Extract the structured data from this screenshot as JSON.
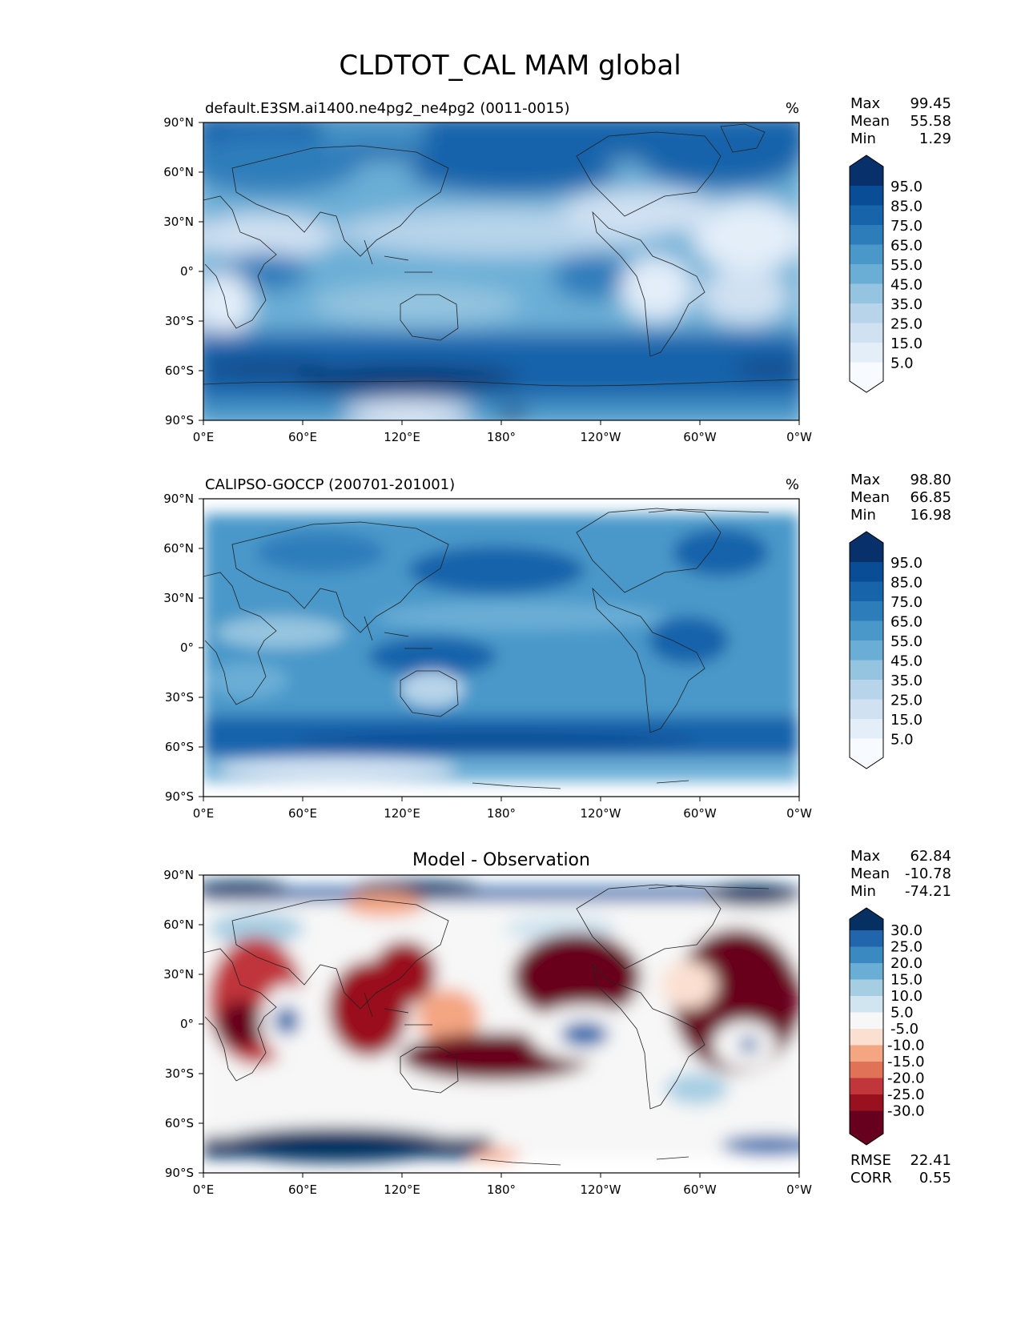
{
  "title": "CLDTOT_CAL MAM global",
  "axes": {
    "lon_ticks": [
      "0°E",
      "60°E",
      "120°E",
      "180°",
      "120°W",
      "60°W",
      "0°W"
    ],
    "lat_ticks": [
      "90°N",
      "60°N",
      "30°N",
      "0°",
      "30°S",
      "60°S",
      "90°S"
    ]
  },
  "panels": [
    {
      "id": "model",
      "left_title": "default.E3SM.ai1400.ne4pg2_ne4pg2 (0011-0015)",
      "center_title": "",
      "right_title": "%",
      "stats": [
        {
          "label": "Max",
          "value": "99.45"
        },
        {
          "label": "Mean",
          "value": "55.58"
        },
        {
          "label": "Min",
          "value": "1.29"
        }
      ],
      "colorbar": {
        "labels": [
          "95.0",
          "85.0",
          "75.0",
          "65.0",
          "55.0",
          "45.0",
          "35.0",
          "25.0",
          "15.0",
          "5.0"
        ],
        "colors": [
          "#08306b",
          "#084d96",
          "#1764ab",
          "#2d7dbb",
          "#4a98c9",
          "#6aaed6",
          "#94c4df",
          "#b7d4ea",
          "#d0e1f2",
          "#e3eef9",
          "#f7fbff"
        ]
      },
      "extra_stats": []
    },
    {
      "id": "obs",
      "left_title": "CALIPSO-GOCCP (200701-201001)",
      "center_title": "",
      "right_title": "%",
      "stats": [
        {
          "label": "Max",
          "value": "98.80"
        },
        {
          "label": "Mean",
          "value": "66.85"
        },
        {
          "label": "Min",
          "value": "16.98"
        }
      ],
      "colorbar": {
        "labels": [
          "95.0",
          "85.0",
          "75.0",
          "65.0",
          "55.0",
          "45.0",
          "35.0",
          "25.0",
          "15.0",
          "5.0"
        ],
        "colors": [
          "#08306b",
          "#084d96",
          "#1764ab",
          "#2d7dbb",
          "#4a98c9",
          "#6aaed6",
          "#94c4df",
          "#b7d4ea",
          "#d0e1f2",
          "#e3eef9",
          "#f7fbff"
        ]
      },
      "extra_stats": []
    },
    {
      "id": "diff",
      "left_title": "",
      "center_title": "Model - Observation",
      "right_title": "",
      "stats": [
        {
          "label": "Max",
          "value": "62.84"
        },
        {
          "label": "Mean",
          "value": "-10.78"
        },
        {
          "label": "Min",
          "value": "-74.21"
        }
      ],
      "colorbar": {
        "labels": [
          "30.0",
          "25.0",
          "20.0",
          "15.0",
          "10.0",
          "5.0",
          "-5.0",
          "-10.0",
          "-15.0",
          "-20.0",
          "-25.0",
          "-30.0"
        ],
        "colors": [
          "#053061",
          "#2166ac",
          "#3a89c0",
          "#6aaed6",
          "#a6cee3",
          "#d1e5f0",
          "#f7f7f7",
          "#fbe0d2",
          "#f4a582",
          "#e07258",
          "#c0363b",
          "#99101f",
          "#67001f"
        ]
      },
      "extra_stats": [
        {
          "label": "RMSE",
          "value": "22.41"
        },
        {
          "label": "CORR",
          "value": "0.55"
        }
      ]
    }
  ]
}
